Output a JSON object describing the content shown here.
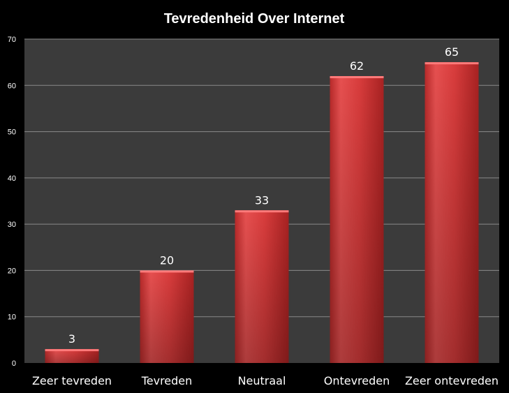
{
  "chart_data": {
    "type": "bar",
    "title": "Tevredenheid Over Internet",
    "xlabel": "",
    "ylabel": "",
    "categories": [
      "Zeer tevreden",
      "Tevreden",
      "Neutraal",
      "Ontevreden",
      "Zeer ontevreden"
    ],
    "values": [
      3,
      20,
      33,
      62,
      65
    ],
    "data_labels": [
      "3",
      "20",
      "33",
      "62",
      "65"
    ],
    "ylim": [
      0,
      70
    ],
    "y_ticks": [
      0,
      10,
      20,
      30,
      40,
      50,
      60,
      70
    ],
    "grid": true,
    "legend": "none",
    "colors": {
      "background": "#000000",
      "plot_area": "#3b3b3b",
      "gridline": "#8a8a8a",
      "bar_light": "#e04a4a",
      "bar_dark": "#9e1f1f",
      "bar_top": "#ff7a7a",
      "text": "#ffffff"
    }
  }
}
